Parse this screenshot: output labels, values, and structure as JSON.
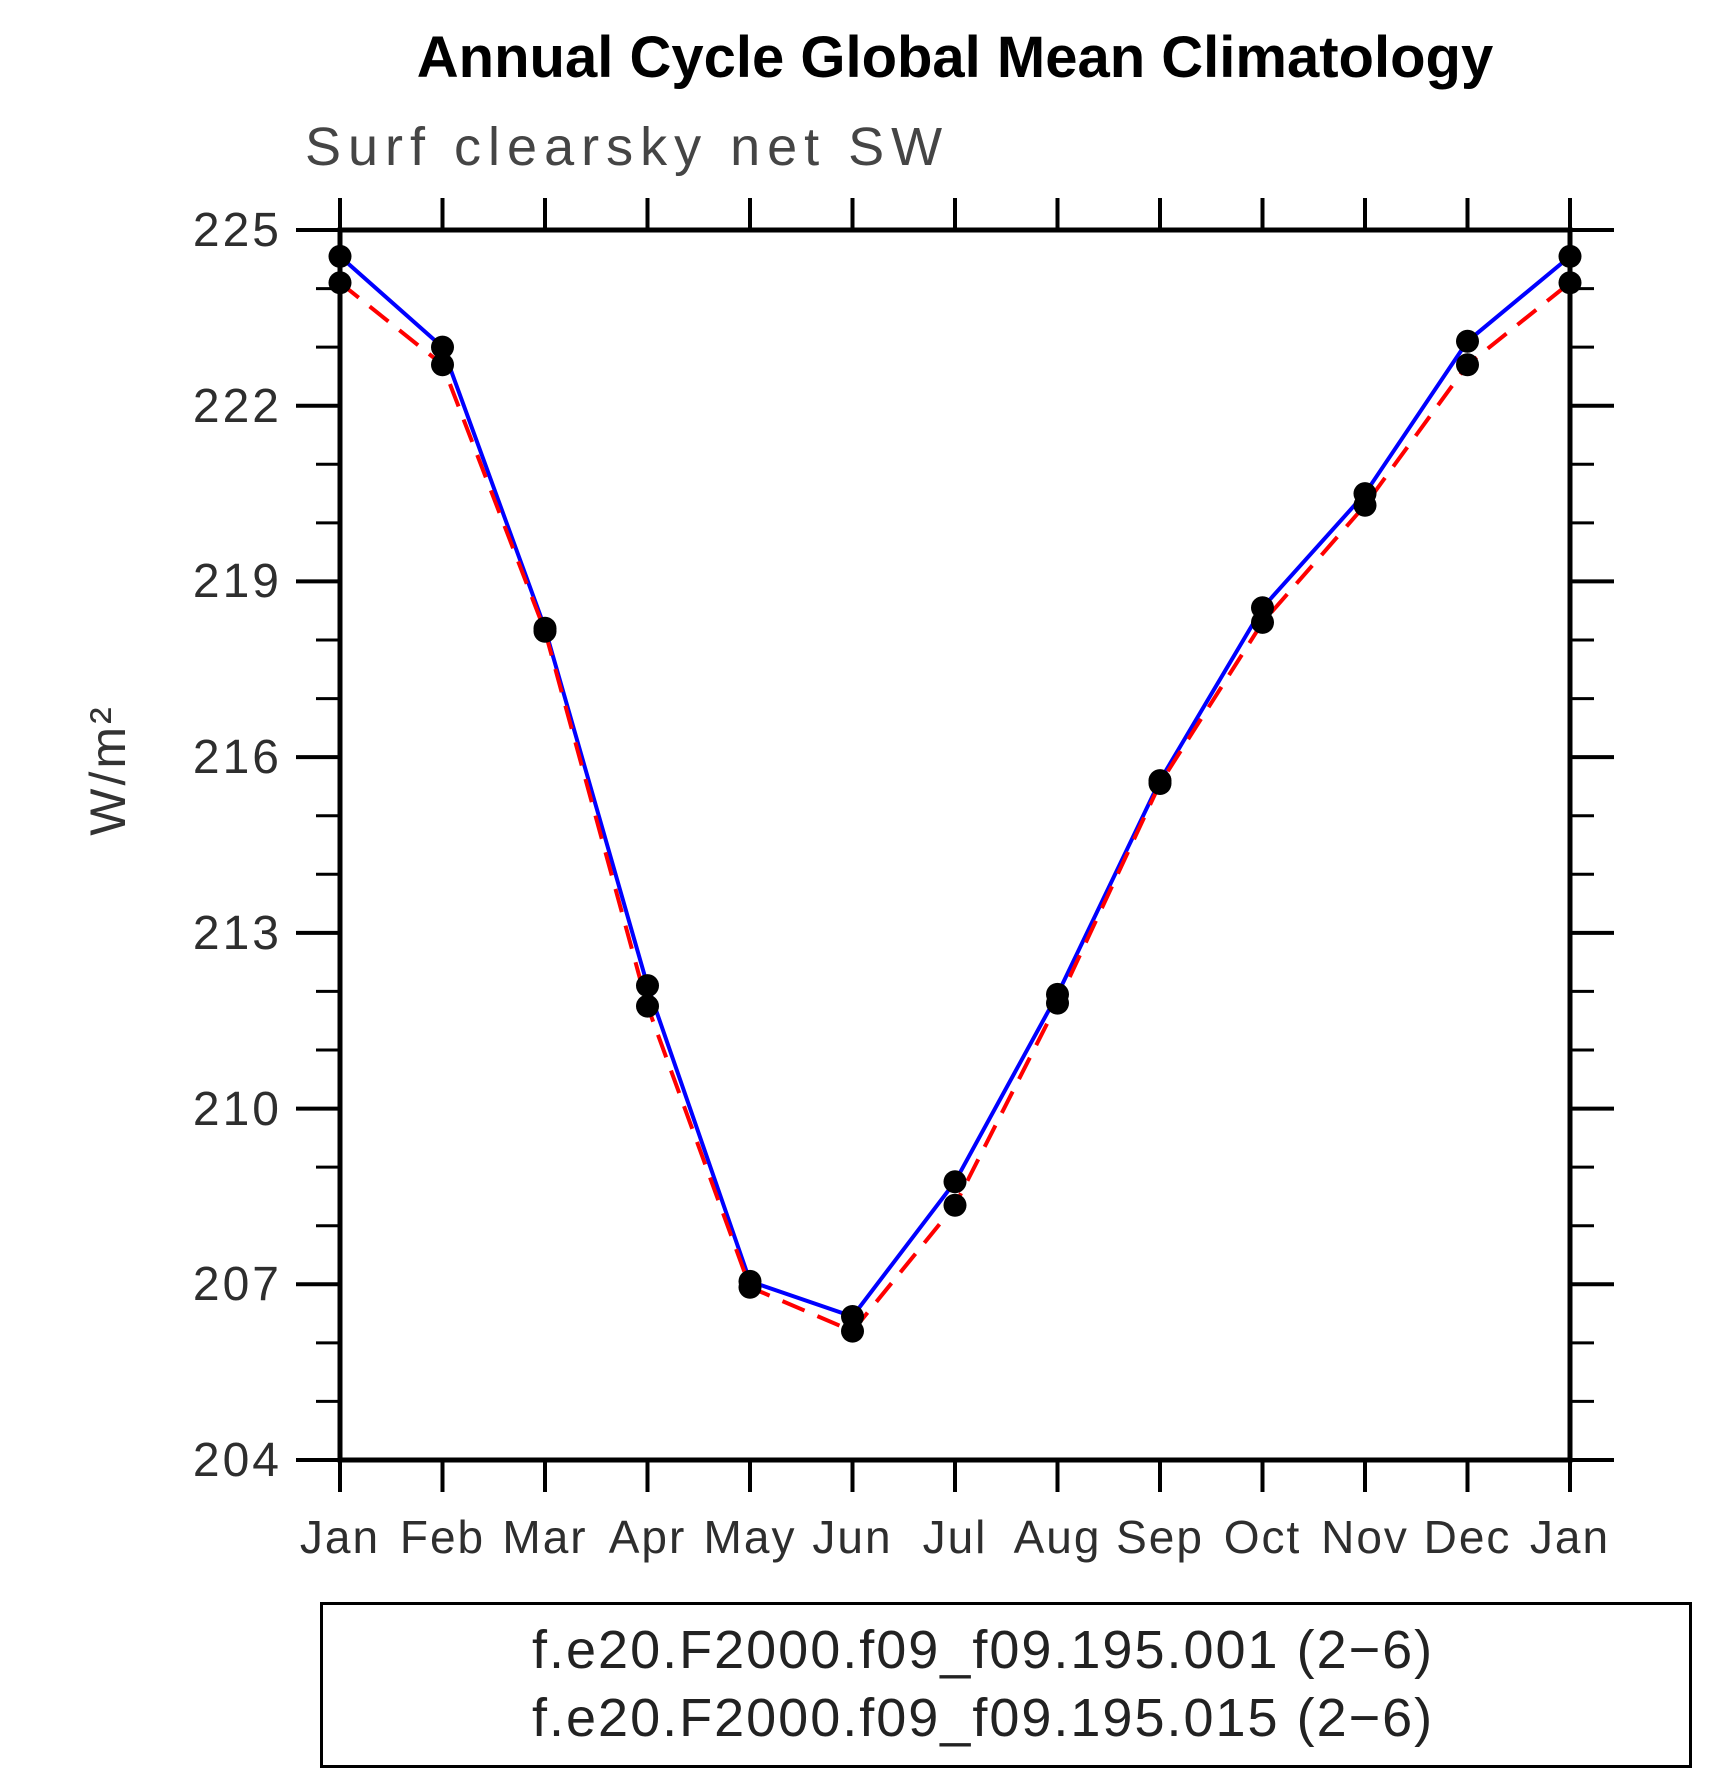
{
  "title": "Annual Cycle Global Mean Climatology",
  "subtitle": "Surf clearsky net SW",
  "chart_data": {
    "type": "line",
    "title": "Annual Cycle Global Mean Climatology",
    "left_subtitle": "Surf clearsky net SW",
    "ylabel": "W/m²",
    "xlabel": "",
    "categories": [
      "Jan",
      "Feb",
      "Mar",
      "Apr",
      "May",
      "Jun",
      "Jul",
      "Aug",
      "Sep",
      "Oct",
      "Nov",
      "Dec",
      "Jan"
    ],
    "series": [
      {
        "name": "f.e20.F2000.f09_f09.195.001 (2−6)",
        "color": "#0000ff",
        "line_style": "solid",
        "marker": "filled-circle",
        "marker_color": "#000000",
        "values": [
          224.55,
          223.0,
          218.2,
          212.1,
          207.05,
          206.45,
          208.75,
          211.95,
          215.6,
          218.55,
          220.5,
          223.1,
          224.55
        ]
      },
      {
        "name": "f.e20.F2000.f09_f09.195.015 (2−6)",
        "color": "#ff0000",
        "line_style": "dashed",
        "marker": "filled-circle",
        "marker_color": "#000000",
        "values": [
          224.1,
          222.7,
          218.15,
          211.75,
          206.95,
          206.2,
          208.35,
          211.8,
          215.55,
          218.3,
          220.3,
          222.7,
          224.1
        ]
      }
    ],
    "ylim": [
      204,
      225
    ],
    "ytick_major_step": 3,
    "ytick_minor_step": 1,
    "ytick_labels": [
      "225",
      "222",
      "219",
      "216",
      "213",
      "210",
      "207",
      "204"
    ],
    "grid": false,
    "legend_position": "bottom",
    "axis_color": "#000000",
    "background": "#ffffff"
  }
}
